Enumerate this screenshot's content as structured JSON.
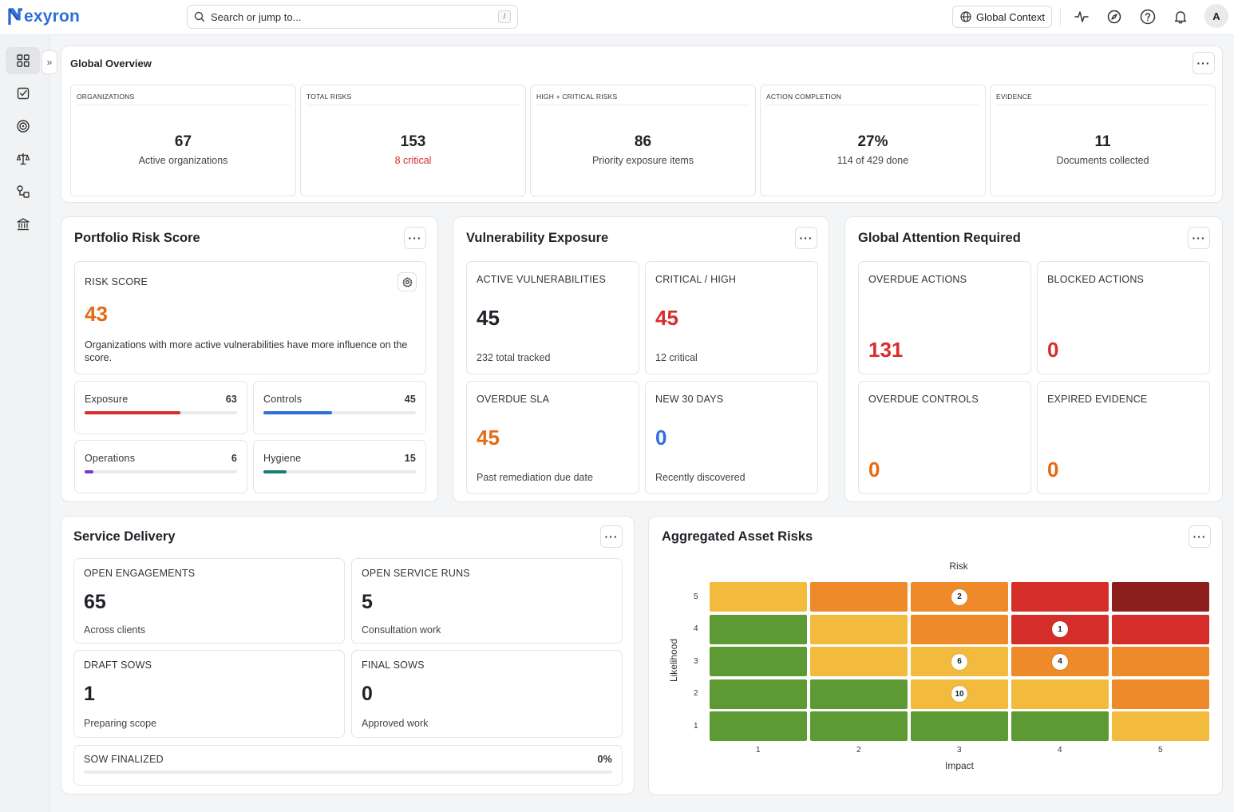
{
  "app": {
    "name": "exyron",
    "brand_color": "#2d6fd6"
  },
  "topbar": {
    "search_placeholder": "Search or jump to...",
    "search_shortcut": "/",
    "context_label": "Global Context",
    "icons": [
      "activity-icon",
      "compass-icon",
      "help-icon",
      "bell-icon"
    ],
    "avatar_initial": "A"
  },
  "sidebar": {
    "items": [
      "dashboard-icon",
      "tasks-icon",
      "target-icon",
      "scale-icon",
      "workflow-icon",
      "institution-icon"
    ],
    "expand_label": "»"
  },
  "overview": {
    "title": "Global Overview",
    "tiles": [
      {
        "label": "ORGANIZATIONS",
        "value": "67",
        "sub": "Active organizations",
        "sub_color": "#444"
      },
      {
        "label": "TOTAL RISKS",
        "value": "153",
        "sub": "8 critical",
        "sub_color": "#d32f2f"
      },
      {
        "label": "HIGH + CRITICAL RISKS",
        "value": "86",
        "sub": "Priority exposure items",
        "sub_color": "#444"
      },
      {
        "label": "ACTION COMPLETION",
        "value": "27%",
        "sub": "114 of 429 done",
        "sub_color": "#444"
      },
      {
        "label": "EVIDENCE",
        "value": "11",
        "sub": "Documents collected",
        "sub_color": "#444"
      }
    ]
  },
  "portfolio": {
    "title": "Portfolio Risk Score",
    "risk_label": "RISK SCORE",
    "risk_value": "43",
    "risk_color": "#e56a12",
    "description": "Organizations with more active vulnerabilities have more influence on the score.",
    "metrics": [
      {
        "label": "Exposure",
        "value": "63",
        "fill": 0.63,
        "color": "#d92d2d"
      },
      {
        "label": "Controls",
        "value": "45",
        "fill": 0.45,
        "color": "#2f6fd8"
      },
      {
        "label": "Operations",
        "value": "6",
        "fill": 0.06,
        "color": "#7a35c9"
      },
      {
        "label": "Hygiene",
        "value": "15",
        "fill": 0.15,
        "color": "#148070"
      }
    ]
  },
  "vulnerability": {
    "title": "Vulnerability Exposure",
    "tiles": [
      {
        "label": "ACTIVE VULNERABILITIES",
        "value": "45",
        "sub": "232 total tracked",
        "color": "#1f2328"
      },
      {
        "label": "CRITICAL / HIGH",
        "value": "45",
        "sub": "12 critical",
        "color": "#d92d2d"
      },
      {
        "label": "OVERDUE SLA",
        "value": "45",
        "sub": "Past remediation due date",
        "color": "#e56a12"
      },
      {
        "label": "NEW 30 DAYS",
        "value": "0",
        "sub": "Recently discovered",
        "color": "#2f6fd8"
      }
    ]
  },
  "attention": {
    "title": "Global Attention Required",
    "tiles": [
      {
        "label": "OVERDUE ACTIONS",
        "value": "131",
        "color": "#d92d2d"
      },
      {
        "label": "BLOCKED ACTIONS",
        "value": "0",
        "color": "#d92d2d"
      },
      {
        "label": "OVERDUE CONTROLS",
        "value": "0",
        "color": "#e56a12"
      },
      {
        "label": "EXPIRED EVIDENCE",
        "value": "0",
        "color": "#e56a12"
      }
    ]
  },
  "service": {
    "title": "Service Delivery",
    "tiles": [
      {
        "label": "OPEN ENGAGEMENTS",
        "value": "65",
        "sub": "Across clients"
      },
      {
        "label": "OPEN SERVICE RUNS",
        "value": "5",
        "sub": "Consultation work"
      },
      {
        "label": "DRAFT SOWS",
        "value": "1",
        "sub": "Preparing scope"
      },
      {
        "label": "FINAL SOWS",
        "value": "0",
        "sub": "Approved work"
      }
    ],
    "sow_label": "SOW FINALIZED",
    "sow_value": "0%",
    "sow_fill": 0
  },
  "asset_risks": {
    "title": "Aggregated Asset Risks",
    "chart_data": {
      "type": "heatmap",
      "title": "Risk",
      "xlabel": "Impact",
      "ylabel": "Likelihood",
      "x": [
        "1",
        "2",
        "3",
        "4",
        "5"
      ],
      "y": [
        "5",
        "4",
        "3",
        "2",
        "1"
      ],
      "colors": [
        [
          "#f2bb3d",
          "#ee8a2a",
          "#ee8a2a",
          "#d42d2a",
          "#8c1e1e"
        ],
        [
          "#5e9a34",
          "#f2bb3d",
          "#ee8a2a",
          "#d42d2a",
          "#d42d2a"
        ],
        [
          "#5e9a34",
          "#f2bb3d",
          "#f2bb3d",
          "#ee8a2a",
          "#ee8a2a"
        ],
        [
          "#5e9a34",
          "#5e9a34",
          "#f2bb3d",
          "#f2bb3d",
          "#ee8a2a"
        ],
        [
          "#5e9a34",
          "#5e9a34",
          "#5e9a34",
          "#5e9a34",
          "#f2bb3d"
        ]
      ],
      "counts": [
        [
          null,
          null,
          2,
          null,
          null
        ],
        [
          null,
          null,
          null,
          1,
          null
        ],
        [
          null,
          null,
          6,
          4,
          null
        ],
        [
          null,
          null,
          10,
          null,
          null
        ],
        [
          null,
          null,
          null,
          null,
          null
        ]
      ]
    }
  }
}
